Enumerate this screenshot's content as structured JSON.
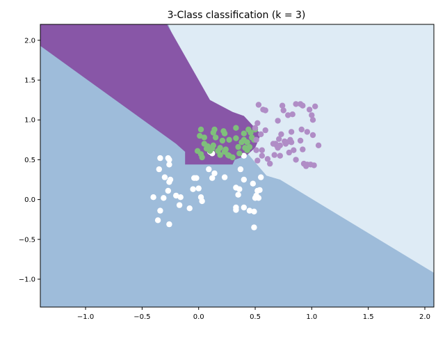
{
  "chart_data": {
    "type": "scatter",
    "title": "3-Class classification (k = 3)",
    "xlabel": "",
    "ylabel": "",
    "xlim": [
      -1.4,
      2.08
    ],
    "ylim": [
      -1.35,
      2.2
    ],
    "grid": false,
    "legend": "none",
    "x_ticks": [
      -1.0,
      -0.5,
      0.0,
      0.5,
      1.0,
      1.5,
      2.0
    ],
    "x_tick_labels": [
      "−1.0",
      "−0.5",
      "0.0",
      "0.5",
      "1.0",
      "1.5",
      "2.0"
    ],
    "y_ticks": [
      -1.0,
      -0.5,
      0.0,
      0.5,
      1.0,
      1.5,
      2.0
    ],
    "y_tick_labels": [
      "−1.0",
      "−0.5",
      "0.0",
      "0.5",
      "1.0",
      "1.5",
      "2.0"
    ],
    "regions": [
      {
        "class": "light",
        "color": "#deebf5",
        "polygon": [
          [
            -1.4,
            2.2
          ],
          [
            2.08,
            2.2
          ],
          [
            2.08,
            -0.92
          ],
          [
            0.72,
            0.25
          ],
          [
            0.6,
            0.3
          ],
          [
            0.42,
            0.6
          ],
          [
            0.42,
            0.95
          ],
          [
            0.0,
            1.3
          ],
          [
            -0.27,
            2.2
          ]
        ]
      },
      {
        "class": "purple",
        "color": "#8856a7",
        "polygon": [
          [
            -1.4,
            2.2
          ],
          [
            -0.28,
            2.2
          ],
          [
            0.1,
            1.25
          ],
          [
            0.3,
            1.1
          ],
          [
            0.4,
            1.05
          ],
          [
            0.55,
            0.82
          ],
          [
            0.5,
            0.65
          ],
          [
            0.42,
            0.55
          ],
          [
            0.32,
            0.5
          ],
          [
            0.3,
            0.44
          ],
          [
            -0.12,
            0.44
          ],
          [
            -0.12,
            0.6
          ],
          [
            -0.2,
            0.7
          ],
          [
            -1.4,
            1.93
          ]
        ]
      }
    ],
    "region_base_color": "#9ebcda",
    "series": [
      {
        "color": "#ffffff",
        "points": [
          [
            -0.34,
            0.52
          ],
          [
            -0.27,
            0.52
          ],
          [
            -0.26,
            0.5
          ],
          [
            -0.26,
            0.44
          ],
          [
            -0.35,
            0.38
          ],
          [
            -0.3,
            0.28
          ],
          [
            -0.25,
            0.25
          ],
          [
            -0.26,
            0.22
          ],
          [
            -0.27,
            0.11
          ],
          [
            -0.2,
            0.05
          ],
          [
            -0.16,
            0.03
          ],
          [
            -0.31,
            0.02
          ],
          [
            -0.4,
            0.03
          ],
          [
            -0.17,
            -0.07
          ],
          [
            -0.34,
            -0.14
          ],
          [
            -0.36,
            -0.26
          ],
          [
            -0.26,
            -0.31
          ],
          [
            -0.08,
            -0.11
          ],
          [
            -0.04,
            0.27
          ],
          [
            -0.02,
            0.27
          ],
          [
            -0.05,
            0.13
          ],
          [
            0.0,
            0.14
          ],
          [
            0.02,
            0.03
          ],
          [
            0.03,
            -0.02
          ],
          [
            0.09,
            0.38
          ],
          [
            0.14,
            0.33
          ],
          [
            0.23,
            0.28
          ],
          [
            0.12,
            0.27
          ],
          [
            0.33,
            0.15
          ],
          [
            0.36,
            0.13
          ],
          [
            0.35,
            0.06
          ],
          [
            0.33,
            -0.1
          ],
          [
            0.33,
            -0.13
          ],
          [
            0.4,
            -0.1
          ],
          [
            0.45,
            -0.14
          ],
          [
            0.49,
            -0.15
          ],
          [
            0.5,
            0.02
          ],
          [
            0.51,
            0.05
          ],
          [
            0.52,
            0.11
          ],
          [
            0.53,
            0.02
          ],
          [
            0.54,
            0.12
          ],
          [
            0.55,
            0.28
          ],
          [
            0.48,
            0.2
          ],
          [
            0.4,
            0.25
          ],
          [
            0.37,
            0.38
          ],
          [
            0.49,
            -0.35
          ],
          [
            0.1,
            0.6
          ],
          [
            0.12,
            0.58
          ],
          [
            0.4,
            0.55
          ]
        ]
      },
      {
        "color": "#7fbf7b",
        "points": [
          [
            0.02,
            0.88
          ],
          [
            0.01,
            0.8
          ],
          [
            0.05,
            0.78
          ],
          [
            -0.01,
            0.61
          ],
          [
            0.02,
            0.57
          ],
          [
            0.03,
            0.53
          ],
          [
            0.05,
            0.7
          ],
          [
            0.08,
            0.67
          ],
          [
            0.1,
            0.61
          ],
          [
            0.12,
            0.64
          ],
          [
            0.13,
            0.68
          ],
          [
            0.13,
            0.84
          ],
          [
            0.14,
            0.88
          ],
          [
            0.15,
            0.78
          ],
          [
            0.17,
            0.61
          ],
          [
            0.19,
            0.56
          ],
          [
            0.21,
            0.74
          ],
          [
            0.22,
            0.86
          ],
          [
            0.23,
            0.83
          ],
          [
            0.23,
            0.6
          ],
          [
            0.24,
            0.63
          ],
          [
            0.26,
            0.56
          ],
          [
            0.27,
            0.55
          ],
          [
            0.3,
            0.53
          ],
          [
            0.27,
            0.75
          ],
          [
            0.33,
            0.9
          ],
          [
            0.33,
            0.77
          ],
          [
            0.35,
            0.66
          ],
          [
            0.38,
            0.72
          ],
          [
            0.4,
            0.83
          ],
          [
            0.4,
            0.75
          ],
          [
            0.41,
            0.65
          ],
          [
            0.43,
            0.62
          ],
          [
            0.43,
            0.72
          ],
          [
            0.44,
            0.88
          ],
          [
            0.46,
            0.84
          ],
          [
            0.47,
            0.78
          ],
          [
            0.5,
            0.88
          ],
          [
            0.49,
            0.75
          ],
          [
            0.45,
            0.66
          ],
          [
            0.07,
            0.64
          ],
          [
            0.19,
            0.65
          ],
          [
            0.36,
            0.58
          ]
        ]
      },
      {
        "color": "#b08dc6",
        "points": [
          [
            0.53,
            1.19
          ],
          [
            0.57,
            1.13
          ],
          [
            0.59,
            1.12
          ],
          [
            0.52,
            0.96
          ],
          [
            0.5,
            0.9
          ],
          [
            0.55,
            0.82
          ],
          [
            0.59,
            0.87
          ],
          [
            0.51,
            0.75
          ],
          [
            0.51,
            0.62
          ],
          [
            0.56,
            0.62
          ],
          [
            0.52,
            0.49
          ],
          [
            0.56,
            0.55
          ],
          [
            0.61,
            0.51
          ],
          [
            0.63,
            0.45
          ],
          [
            0.67,
            0.56
          ],
          [
            0.68,
            0.7
          ],
          [
            0.69,
            0.68
          ],
          [
            0.7,
            0.99
          ],
          [
            0.71,
            0.76
          ],
          [
            0.72,
            0.68
          ],
          [
            0.72,
            0.55
          ],
          [
            0.74,
            1.18
          ],
          [
            0.75,
            1.12
          ],
          [
            0.76,
            0.73
          ],
          [
            0.77,
            0.7
          ],
          [
            0.79,
            1.06
          ],
          [
            0.8,
            0.59
          ],
          [
            0.81,
            0.75
          ],
          [
            0.82,
            0.85
          ],
          [
            0.83,
            1.07
          ],
          [
            0.84,
            0.62
          ],
          [
            0.86,
            0.5
          ],
          [
            0.86,
            1.2
          ],
          [
            0.9,
            1.2
          ],
          [
            0.92,
            1.18
          ],
          [
            0.91,
            0.88
          ],
          [
            0.9,
            0.74
          ],
          [
            0.92,
            0.63
          ],
          [
            0.93,
            0.45
          ],
          [
            0.95,
            0.42
          ],
          [
            0.96,
            0.85
          ],
          [
            0.96,
            0.44
          ],
          [
            0.98,
            1.13
          ],
          [
            1.0,
            1.06
          ],
          [
            1.01,
            1.0
          ],
          [
            1.01,
            0.81
          ],
          [
            1.02,
            0.43
          ],
          [
            1.03,
            1.17
          ],
          [
            1.06,
            0.68
          ],
          [
            0.82,
            0.72
          ],
          [
            0.66,
            0.7
          ],
          [
            0.7,
            0.65
          ],
          [
            0.73,
            0.82
          ],
          [
            0.78,
            0.72
          ],
          [
            0.99,
            0.44
          ]
        ]
      }
    ]
  }
}
